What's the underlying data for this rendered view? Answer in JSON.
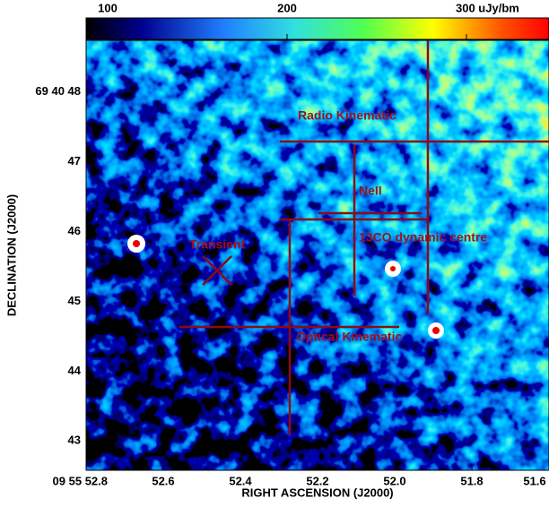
{
  "chart_data": {
    "type": "image",
    "xlabel": "RIGHT ASCENSION (J2000)",
    "ylabel": "DECLINATION (J2000)",
    "xlim": [
      52.8,
      51.6
    ],
    "xticks": [
      {
        "value": 52.8,
        "label": "09 55 52.8"
      },
      {
        "value": 52.6,
        "label": "52.6"
      },
      {
        "value": 52.4,
        "label": "52.4"
      },
      {
        "value": 52.2,
        "label": "52.2"
      },
      {
        "value": 52.0,
        "label": "52.0"
      },
      {
        "value": 51.8,
        "label": "51.8"
      },
      {
        "value": 51.6,
        "label": "51.6"
      }
    ],
    "ylim": [
      42.58,
      48.74
    ],
    "yticks": [
      {
        "value": 48,
        "label": "69 40 48"
      },
      47,
      46,
      45,
      44,
      43
    ],
    "clim": [
      88,
      346
    ],
    "cticks": [
      100,
      200,
      {
        "value": 300,
        "label": "300 uJy/bm"
      }
    ],
    "annotations": [
      "Radio Kinematic",
      "NeII",
      "13CO dynamic centre",
      "Transient",
      "Optical Kinematic"
    ]
  }
}
